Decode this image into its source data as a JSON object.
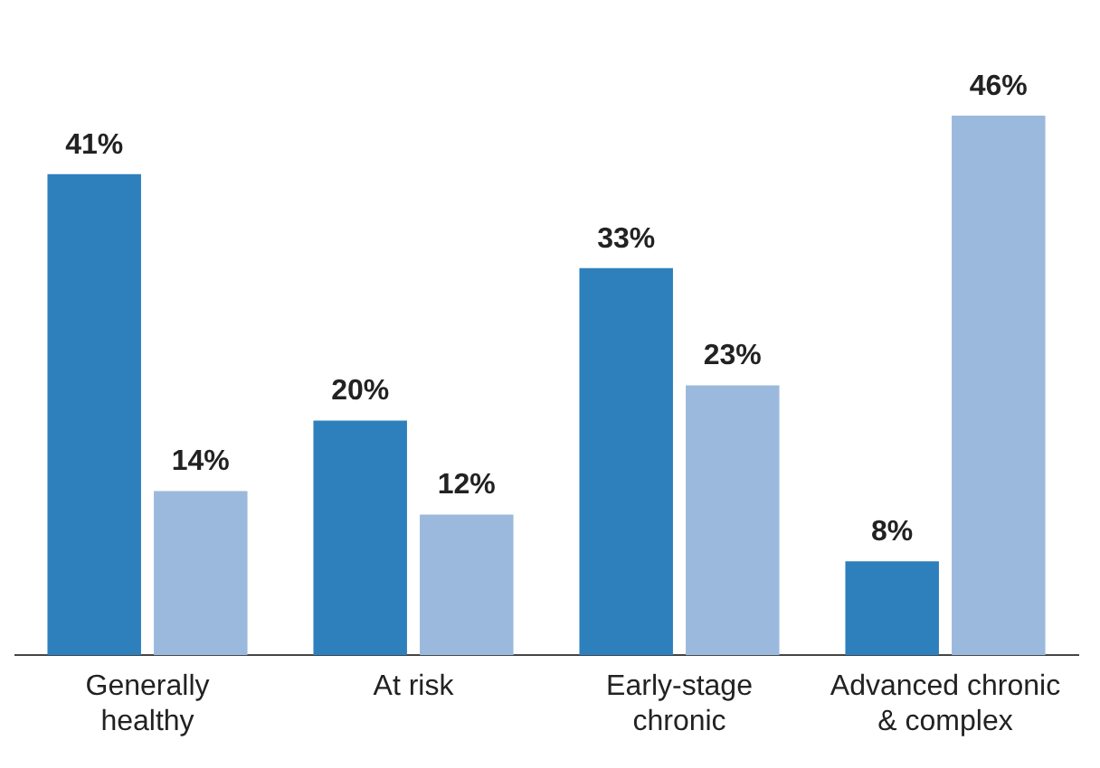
{
  "chart_data": {
    "type": "bar",
    "categories": [
      "Generally healthy",
      "At risk",
      "Early-stage chronic",
      "Advanced chronic & complex"
    ],
    "series": [
      {
        "color": "#2e80bd",
        "values": [
          41,
          20,
          33,
          8
        ],
        "value_labels": [
          "41%",
          "20%",
          "33%",
          "8%"
        ]
      },
      {
        "color": "#9bb9dc",
        "values": [
          14,
          12,
          23,
          46
        ],
        "value_labels": [
          "14%",
          "12%",
          "23%",
          "46%"
        ]
      }
    ],
    "grid": false,
    "legend": false
  }
}
